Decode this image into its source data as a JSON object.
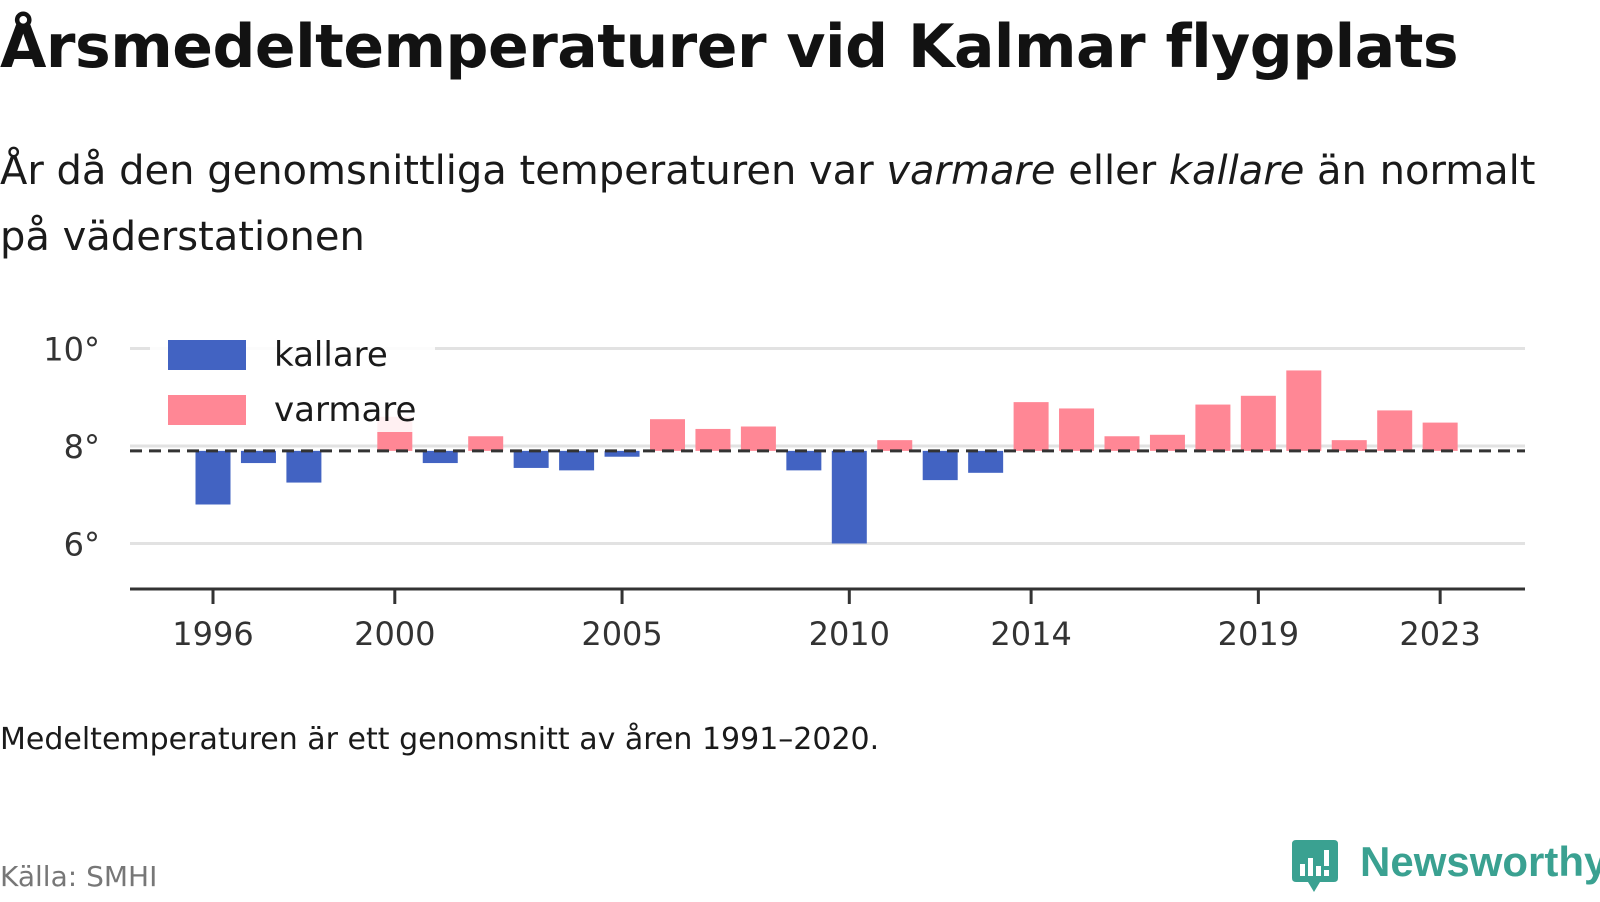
{
  "header": {
    "title": "Årsmedeltemperaturer vid Kalmar flygplats",
    "subtitle_prefix": "År då den genomsnittliga temperaturen var ",
    "subtitle_warm": "varmare",
    "subtitle_mid": " eller ",
    "subtitle_cold": "kallare",
    "subtitle_suffix": " än normalt på väderstationen"
  },
  "footer": {
    "note": "Medeltemperaturen är ett genomsnitt av åren 1991–2020.",
    "source": "Källa: SMHI",
    "brand": "Newsworthy"
  },
  "colors": {
    "cold": "#4263c2",
    "warm": "#ff8795",
    "reference": "#333333",
    "grid": "#e2e2e2",
    "brand": "#3aa191"
  },
  "chart_data": {
    "type": "bar",
    "baseline": 7.9,
    "ylim": [
      5.1,
      10.1
    ],
    "yticks": [
      6,
      8,
      10
    ],
    "ytick_labels": [
      "6°",
      "8°",
      "10°"
    ],
    "xtick_labels": [
      "1996",
      "2000",
      "2005",
      "2010",
      "2014",
      "2019",
      "2023"
    ],
    "legend": [
      {
        "key": "cold",
        "label": "kallare"
      },
      {
        "key": "warm",
        "label": "varmare"
      }
    ],
    "legend_position": "top-left",
    "grid": true,
    "years": [
      1996,
      1997,
      1998,
      1999,
      2000,
      2001,
      2002,
      2003,
      2004,
      2005,
      2006,
      2007,
      2008,
      2009,
      2010,
      2011,
      2012,
      2013,
      2014,
      2015,
      2016,
      2017,
      2018,
      2019,
      2020,
      2021,
      2022,
      2023
    ],
    "values": [
      6.8,
      7.65,
      7.25,
      null,
      8.6,
      7.65,
      8.2,
      7.55,
      7.5,
      7.78,
      8.55,
      8.35,
      8.4,
      7.5,
      6.0,
      8.12,
      7.3,
      7.45,
      8.9,
      8.77,
      8.2,
      8.23,
      8.85,
      9.03,
      9.55,
      8.12,
      8.73,
      8.48
    ]
  }
}
